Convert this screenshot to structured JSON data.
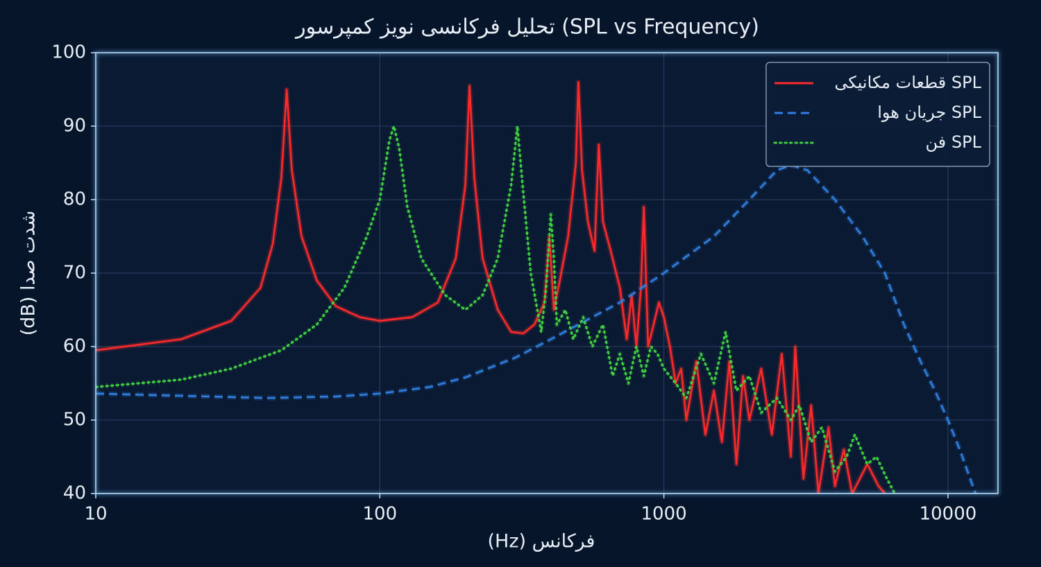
{
  "chart_data": {
    "type": "line",
    "title": "تحلیل فرکانسی نویز کمپرسور (SPL vs Frequency)",
    "xlabel": "(Hz) فرکانس",
    "ylabel": "(dB) شدت صدا",
    "xscale": "log",
    "xlim": [
      10,
      15000
    ],
    "xticks": [
      10,
      100,
      1000,
      10000
    ],
    "ylim": [
      40,
      100
    ],
    "yticks": [
      40,
      50,
      60,
      70,
      80,
      90,
      100
    ],
    "grid": true,
    "legend": "upper right",
    "series": [
      {
        "name": "قطعات مکانیکی SPL",
        "color": "#ff2b2b",
        "style": "solid",
        "x": [
          10,
          20,
          30,
          38,
          42,
          45,
          47,
          49,
          53,
          60,
          70,
          85,
          100,
          130,
          160,
          185,
          200,
          207,
          215,
          230,
          260,
          290,
          320,
          350,
          380,
          395,
          410,
          430,
          460,
          490,
          500,
          515,
          540,
          570,
          590,
          610,
          650,
          700,
          740,
          770,
          800,
          830,
          850,
          880,
          920,
          960,
          1000,
          1050,
          1100,
          1150,
          1200,
          1300,
          1400,
          1500,
          1600,
          1700,
          1800,
          1900,
          2000,
          2200,
          2400,
          2600,
          2800,
          2900,
          3100,
          3300,
          3500,
          3800,
          4000,
          4300,
          4600,
          5200,
          5700,
          6000
        ],
        "values": [
          59.5,
          61,
          63.5,
          68,
          74,
          83,
          95,
          84,
          75,
          69,
          65.5,
          64,
          63.5,
          64,
          66,
          72,
          82,
          95.5,
          83,
          72,
          65,
          62,
          61.8,
          63,
          66,
          75,
          65,
          69,
          75,
          85,
          96,
          84,
          77,
          73,
          87.5,
          77,
          73,
          68,
          61,
          67,
          60,
          68,
          79,
          60,
          63,
          66,
          64,
          60,
          55,
          57,
          50,
          58,
          48,
          54,
          47,
          58,
          44,
          56,
          50,
          57,
          48,
          59,
          45,
          60,
          42,
          52,
          40,
          49,
          41,
          46,
          40,
          44,
          41,
          40
        ]
      },
      {
        "name": "جریان هوا SPL",
        "color": "#2f80e0",
        "style": "dashed",
        "x": [
          10,
          20,
          40,
          70,
          100,
          150,
          200,
          300,
          400,
          500,
          700,
          1000,
          1500,
          2000,
          2500,
          2800,
          3200,
          4000,
          5000,
          6000,
          7000,
          8000,
          9000,
          10000,
          11000,
          12500
        ],
        "values": [
          53.6,
          53.3,
          53,
          53.2,
          53.6,
          54.5,
          55.8,
          58.5,
          61,
          63,
          66,
          70,
          75,
          80,
          84,
          84.7,
          84,
          80,
          75,
          70,
          63,
          58,
          54,
          50,
          46,
          40
        ]
      },
      {
        "name": "فن SPL",
        "color": "#3fd13f",
        "style": "dotted",
        "x": [
          10,
          20,
          30,
          45,
          60,
          75,
          90,
          100,
          108,
          112,
          117,
          125,
          140,
          170,
          200,
          230,
          260,
          290,
          305,
          318,
          340,
          370,
          385,
          400,
          410,
          420,
          450,
          480,
          520,
          560,
          610,
          660,
          700,
          750,
          800,
          850,
          900,
          950,
          1000,
          1100,
          1200,
          1350,
          1500,
          1650,
          1800,
          2000,
          2200,
          2500,
          2800,
          3000,
          3300,
          3600,
          4000,
          4400,
          4700,
          5200,
          5600,
          6100,
          6500
        ],
        "values": [
          54.5,
          55.5,
          57,
          59.5,
          63,
          68,
          75,
          80,
          88,
          90,
          87,
          79,
          72,
          67,
          65,
          67,
          72,
          82,
          90,
          82,
          70,
          62,
          68,
          78,
          72,
          63,
          65,
          61,
          64,
          60,
          63,
          56,
          59,
          55,
          60,
          56,
          60,
          59,
          57,
          55,
          53,
          59,
          55,
          62,
          54,
          56,
          51,
          53,
          50,
          52,
          47,
          49,
          43,
          45,
          48,
          44,
          45,
          42,
          40
        ]
      }
    ]
  }
}
